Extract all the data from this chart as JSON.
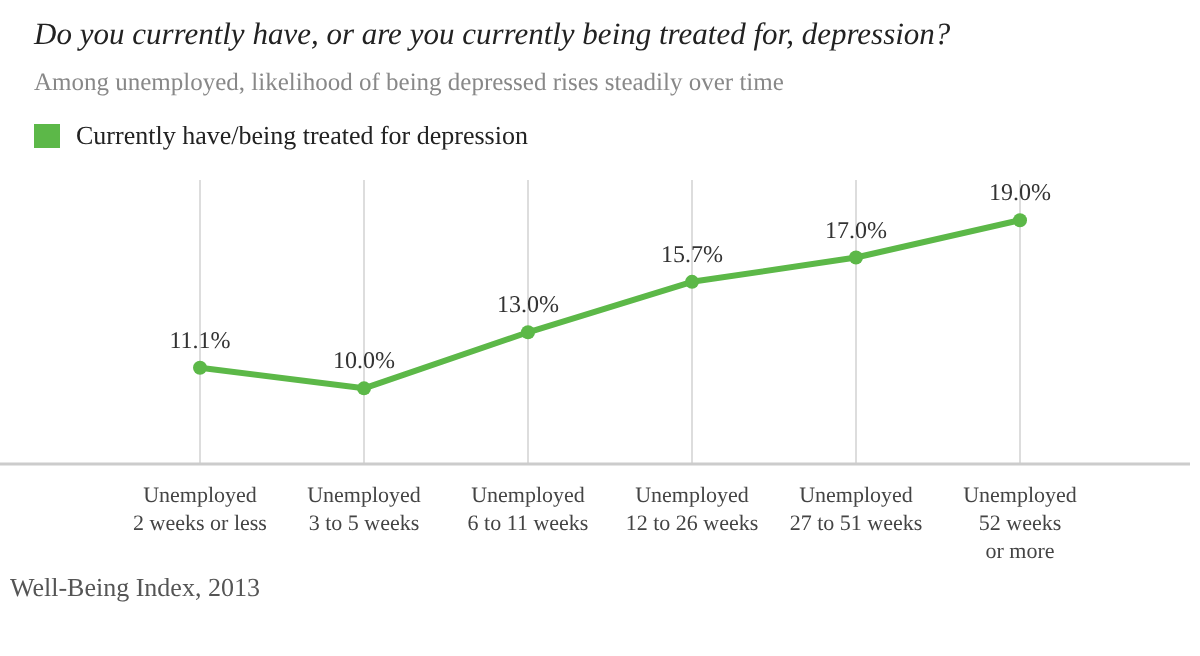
{
  "chart_data": {
    "type": "line",
    "title": "Do you currently have, or are you currently being treated for, depression?",
    "subtitle": "Among unemployed, likelihood of being depressed rises steadily over time",
    "categories": [
      "Unemployed\n2 weeks or less",
      "Unemployed\n3 to 5 weeks",
      "Unemployed\n6 to 11 weeks",
      "Unemployed\n12 to 26 weeks",
      "Unemployed\n27 to 51 weeks",
      "Unemployed\n52 weeks\nor more"
    ],
    "series": [
      {
        "name": "Currently have/being treated for depression",
        "color": "#5cb848",
        "values": [
          11.1,
          10.0,
          13.0,
          15.7,
          17.0,
          19.0
        ],
        "value_labels": [
          "11.1%",
          "10.0%",
          "13.0%",
          "15.7%",
          "17.0%",
          "19.0%"
        ]
      }
    ],
    "annotations": [
      "Well-Being Index, 2013"
    ],
    "grid": "x",
    "legend": "top left",
    "marker": "circle"
  }
}
